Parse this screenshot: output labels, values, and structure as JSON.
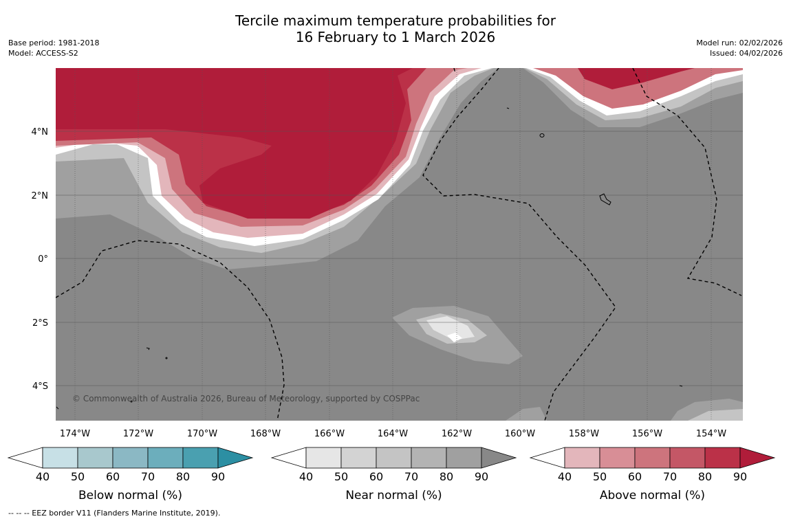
{
  "title": {
    "line1": "Tercile maximum temperature probabilities for",
    "line2": "16 February to 1 March 2026"
  },
  "meta_left": {
    "base_period": "Base period: 1981-2018",
    "model": "Model: ACCESS-S2"
  },
  "meta_right": {
    "model_run": "Model run: 02/02/2026",
    "issued": "Issued: 04/02/2026"
  },
  "map": {
    "copyright": "© Commonwealth of Australia 2026, Bureau of Meteorology, supported by COSPPac",
    "lat_labels": [
      "4°N",
      "2°N",
      "0°",
      "2°S",
      "4°S"
    ],
    "lon_labels": [
      "174°W",
      "172°W",
      "170°W",
      "168°W",
      "166°W",
      "164°W",
      "162°W",
      "160°W",
      "158°W",
      "156°W",
      "154°W"
    ]
  },
  "colorbars": [
    {
      "title": "Below normal (%)",
      "ticks": [
        "40",
        "50",
        "60",
        "70",
        "80",
        "90"
      ],
      "colors": [
        "#ffffff",
        "#c7e0e6",
        "#a8c8cd",
        "#8bb8c4",
        "#6caebc",
        "#4aa0b0",
        "#2c8fa3"
      ]
    },
    {
      "title": "Near normal (%)",
      "ticks": [
        "40",
        "50",
        "60",
        "70",
        "80",
        "90"
      ],
      "colors": [
        "#ffffff",
        "#e6e6e6",
        "#d3d3d3",
        "#c4c4c4",
        "#b3b3b3",
        "#a0a0a0",
        "#888888"
      ]
    },
    {
      "title": "Above normal (%)",
      "ticks": [
        "40",
        "50",
        "60",
        "70",
        "80",
        "90"
      ],
      "colors": [
        "#ffffff",
        "#e3b6bb",
        "#d88e96",
        "#cd747d",
        "#c45766",
        "#bb3148",
        "#b01d3a"
      ]
    }
  ],
  "footnote": "--  --  -- EEZ border V11 (Flanders Marine Institute, 2019)."
}
